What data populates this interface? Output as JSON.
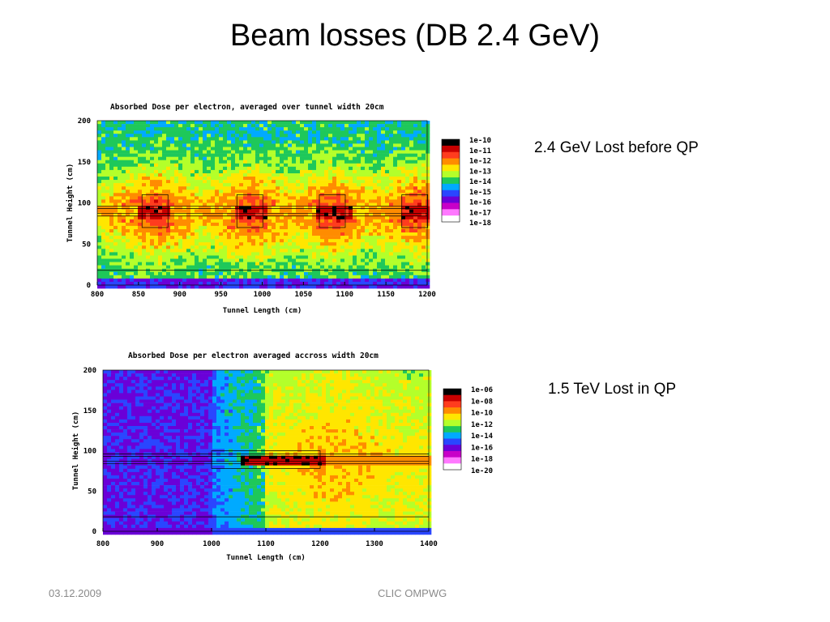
{
  "slide": {
    "title": "Beam losses (DB 2.4 GeV)",
    "footer_date": "03.12.2009",
    "footer_center": "CLIC OMPWG",
    "label_top": "2.4 GeV Lost before QP",
    "label_bottom": "1.5 TeV Lost in QP"
  },
  "chart_data": [
    {
      "type": "heatmap",
      "title": "Absorbed Dose per electron, averaged over tunnel width 20cm",
      "xlabel": "Tunnel Length (cm)",
      "ylabel": "Tunnel Height (cm)",
      "xlim": [
        800,
        1200
      ],
      "ylim": [
        0,
        200
      ],
      "xticks": [
        800,
        850,
        900,
        950,
        1000,
        1050,
        1100,
        1150,
        1200
      ],
      "yticks": [
        0,
        50,
        100,
        150,
        200
      ],
      "colorbar": [
        "1e-10",
        "1e-11",
        "1e-12",
        "1e-13",
        "1e-14",
        "1e-15",
        "1e-16",
        "1e-17",
        "1e-18"
      ],
      "colors": [
        "#000000",
        "#c80000",
        "#ff3c1e",
        "#ff8c00",
        "#ffe600",
        "#b4ff2a",
        "#1ec85a",
        "#00aaff",
        "#2a46ff",
        "#6a00d8",
        "#c800c8",
        "#ff78ff",
        "#ffffff"
      ],
      "hotspots_x": [
        870,
        985,
        1085,
        1185
      ],
      "beam_y": 90
    },
    {
      "type": "heatmap",
      "title": "Absorbed Dose per electron averaged accross width 20cm",
      "xlabel": "Tunnel Length (cm)",
      "ylabel": "Tunnel Height (cm)",
      "xlim": [
        800,
        1400
      ],
      "ylim": [
        0,
        200
      ],
      "xticks": [
        800,
        900,
        1000,
        1100,
        1200,
        1300,
        1400
      ],
      "yticks": [
        0,
        50,
        100,
        150,
        200
      ],
      "colorbar": [
        "1e-06",
        "1e-08",
        "1e-10",
        "1e-12",
        "1e-14",
        "1e-16",
        "1e-18",
        "1e-20"
      ],
      "colors": [
        "#000000",
        "#c80000",
        "#ff3c1e",
        "#ff8c00",
        "#ffe600",
        "#b4ff2a",
        "#1ec85a",
        "#00aaff",
        "#2a46ff",
        "#6a00d8",
        "#c800c8",
        "#ff78ff",
        "#ffffff"
      ],
      "hotspot_range": [
        1050,
        1200
      ],
      "beam_y": 90
    }
  ]
}
